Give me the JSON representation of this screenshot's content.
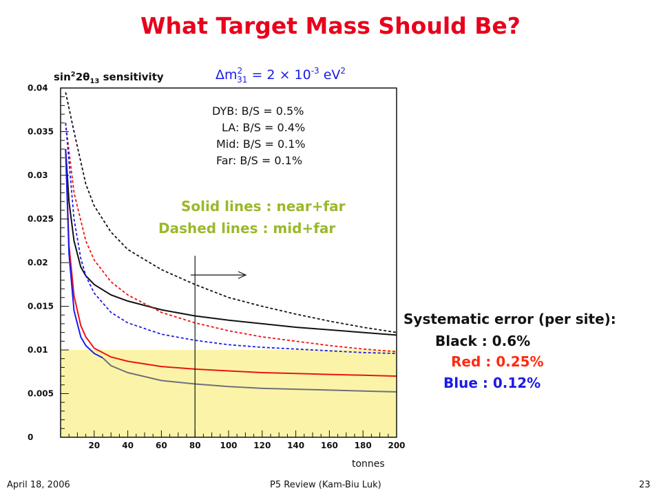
{
  "slide": {
    "title": "What Target Mass Should Be?",
    "footer_date": "April 18, 2006",
    "footer_center": "P5 Review (Kam-Biu Luk)",
    "page_number": "23"
  },
  "dm2": {
    "prefix": "Δm",
    "sup1": "2",
    "sub": "31",
    "mid": " = 2 × 10",
    "sup2": "-3",
    "unit": " eV",
    "sup3": "2"
  },
  "bs_notes": [
    "DYB: B/S = 0.5%",
    "LA: B/S = 0.4%",
    "Mid: B/S = 0.1%",
    "Far: B/S = 0.1%"
  ],
  "line_notes": {
    "solid": "Solid lines : near+far",
    "dashed": "Dashed lines : mid+far"
  },
  "systematics": {
    "heading": "Systematic error (per site):",
    "black": "Black : 0.6%",
    "red": "Red : 0.25%",
    "blue": "Blue : 0.12%"
  },
  "colors": {
    "title": "#e8001c",
    "black": "#111111",
    "red": "#ee1111",
    "blue": "#1a1aee",
    "gray": "#6e6e7e",
    "highlight": "#fbf4a8",
    "note_green": "#9ab82a",
    "blue_text": "#1a1ae6",
    "red_text": "#ff2a10"
  },
  "chart_data": {
    "type": "line",
    "title": "sin²2θ₁₃ sensitivity",
    "title_parts": {
      "a": "sin",
      "sup": "2",
      "b": "2θ",
      "sub": "13",
      "c": " sensitivity"
    },
    "xlabel": "tonnes",
    "ylabel": "",
    "xlim": [
      0,
      200
    ],
    "ylim": [
      0,
      0.04
    ],
    "x_ticks": [
      20,
      40,
      60,
      80,
      100,
      120,
      140,
      160,
      180,
      200
    ],
    "y_ticks": [
      0,
      0.005,
      0.01,
      0.015,
      0.02,
      0.025,
      0.03,
      0.035,
      0.04
    ],
    "y_tick_labels": [
      "0",
      "0.005",
      "0.01",
      "0.015",
      "0.02",
      "0.025",
      "0.03",
      "0.035",
      "0.04"
    ],
    "highlight_band": [
      0,
      0.01
    ],
    "marker_x": 80,
    "series": [
      {
        "color": "black",
        "style": "dashed",
        "x": [
          3,
          8,
          15,
          20,
          30,
          40,
          60,
          80,
          100,
          120,
          140,
          160,
          180,
          200
        ],
        "y": [
          0.0395,
          0.035,
          0.029,
          0.0265,
          0.0235,
          0.0215,
          0.0192,
          0.0175,
          0.016,
          0.015,
          0.0141,
          0.0133,
          0.0126,
          0.012
        ]
      },
      {
        "color": "black",
        "style": "solid",
        "x": [
          3,
          5,
          8,
          12,
          15,
          20,
          30,
          40,
          60,
          80,
          100,
          120,
          140,
          160,
          180,
          200
        ],
        "y": [
          0.033,
          0.027,
          0.0225,
          0.0195,
          0.0185,
          0.0175,
          0.0163,
          0.0156,
          0.0146,
          0.0139,
          0.0134,
          0.013,
          0.0126,
          0.0123,
          0.012,
          0.0117
        ]
      },
      {
        "color": "red",
        "style": "dashed",
        "x": [
          3,
          8,
          15,
          20,
          30,
          40,
          60,
          80,
          100,
          120,
          140,
          160,
          180,
          200
        ],
        "y": [
          0.036,
          0.028,
          0.0225,
          0.0203,
          0.0178,
          0.0163,
          0.0143,
          0.0131,
          0.0122,
          0.0115,
          0.011,
          0.0105,
          0.0101,
          0.0098
        ]
      },
      {
        "color": "red",
        "style": "solid",
        "x": [
          3,
          5,
          8,
          12,
          15,
          20,
          30,
          40,
          60,
          80,
          100,
          120,
          140,
          160,
          180,
          200
        ],
        "y": [
          0.033,
          0.022,
          0.0162,
          0.0128,
          0.0115,
          0.0102,
          0.0092,
          0.0087,
          0.0081,
          0.0078,
          0.0076,
          0.0074,
          0.0073,
          0.0072,
          0.0071,
          0.007
        ]
      },
      {
        "color": "blue",
        "style": "dashed",
        "x": [
          3,
          8,
          12,
          15,
          20,
          30,
          40,
          60,
          80,
          100,
          120,
          140,
          160,
          180,
          200
        ],
        "y": [
          0.036,
          0.025,
          0.0205,
          0.0185,
          0.0165,
          0.0143,
          0.0131,
          0.0118,
          0.0111,
          0.0106,
          0.0103,
          0.0101,
          0.0099,
          0.0097,
          0.0096
        ]
      },
      {
        "color": "blue",
        "style": "solid",
        "x": [
          3,
          5,
          8,
          12,
          15,
          20,
          25
        ],
        "y": [
          0.033,
          0.021,
          0.0145,
          0.0115,
          0.0105,
          0.0096,
          0.0091
        ]
      },
      {
        "color": "gray",
        "style": "solid",
        "x": [
          25,
          30,
          40,
          60,
          80,
          100,
          120,
          140,
          160,
          180,
          200
        ],
        "y": [
          0.0091,
          0.0082,
          0.0074,
          0.0065,
          0.0061,
          0.0058,
          0.0056,
          0.0055,
          0.0054,
          0.0053,
          0.0052
        ]
      }
    ]
  }
}
